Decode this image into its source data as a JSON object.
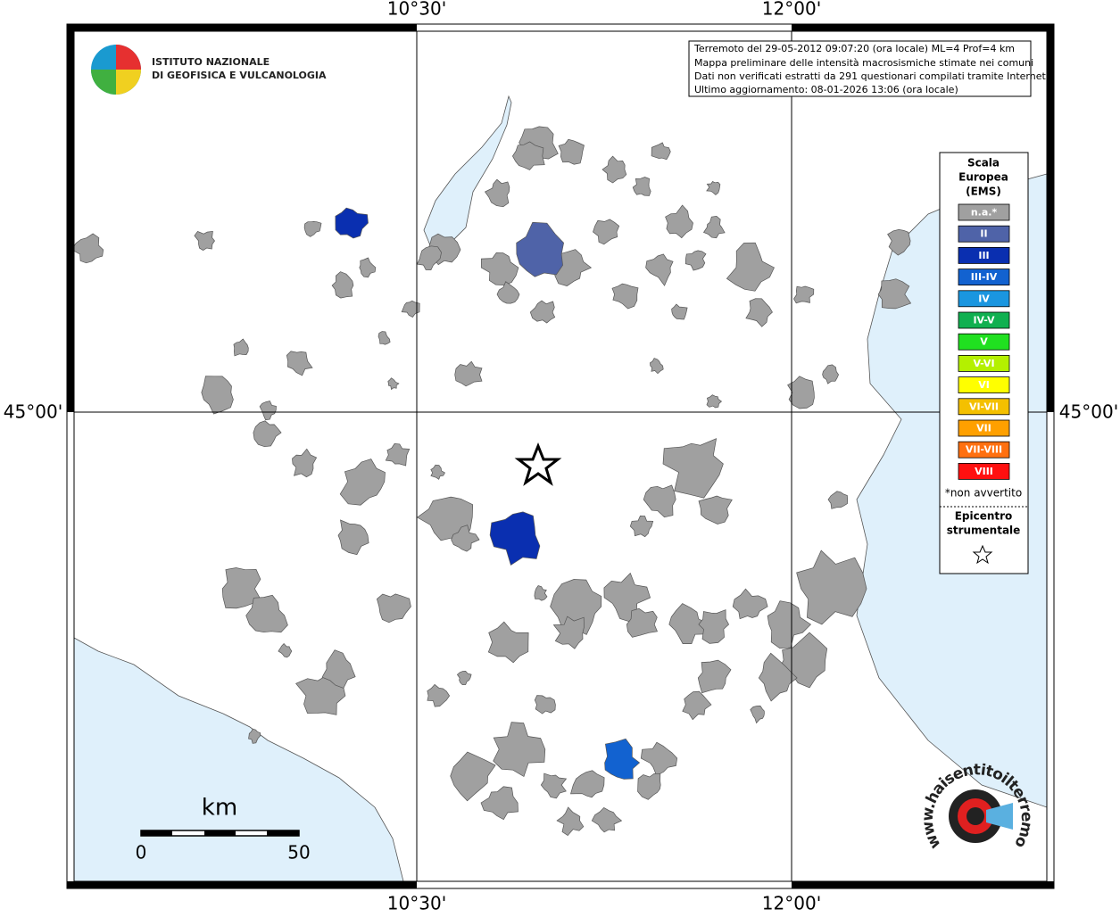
{
  "axis_labels": {
    "lon_1": "10°30'",
    "lon_2": "12°00'",
    "lat_1": "45°00'"
  },
  "institute": {
    "line_1": "ISTITUTO NAZIONALE",
    "line_2": "DI GEOFISICA E VULCANOLOGIA"
  },
  "info": [
    "Terremoto del 29-05-2012 09:07:20 (ora locale) ML=4 Prof=4 km",
    "Mappa preliminare delle intensità macrosismiche stimate nei comuni",
    "Dati non verificati estratti da 291 questionari compilati tramite Internet.",
    "Ultimo aggiornamento: 08-01-2026 13:06 (ora locale)"
  ],
  "legend": {
    "title": [
      "Scala",
      "Europea",
      "(EMS)"
    ],
    "items": [
      {
        "label": "n.a.*",
        "color": "#a0a0a0"
      },
      {
        "label": "II",
        "color": "#4f63a8"
      },
      {
        "label": "III",
        "color": "#0a2fb0"
      },
      {
        "label": "III-IV",
        "color": "#1262d0"
      },
      {
        "label": "IV",
        "color": "#1a96e0"
      },
      {
        "label": "IV-V",
        "color": "#10b050"
      },
      {
        "label": "V",
        "color": "#20e020"
      },
      {
        "label": "V-VI",
        "color": "#b4f000"
      },
      {
        "label": "VI",
        "color": "#ffff00"
      },
      {
        "label": "VI-VII",
        "color": "#f4c000"
      },
      {
        "label": "VII",
        "color": "#ffa000"
      },
      {
        "label": "VII-VIII",
        "color": "#ff7010"
      },
      {
        "label": "VIII",
        "color": "#ff1010"
      }
    ],
    "note": "*non avvertito",
    "epicenter": [
      "Epicentro",
      "strumentale"
    ]
  },
  "scale_bar": {
    "unit": "km",
    "start": "0",
    "end": "50"
  },
  "logo": "www.haisentitoilterremoto.it"
}
